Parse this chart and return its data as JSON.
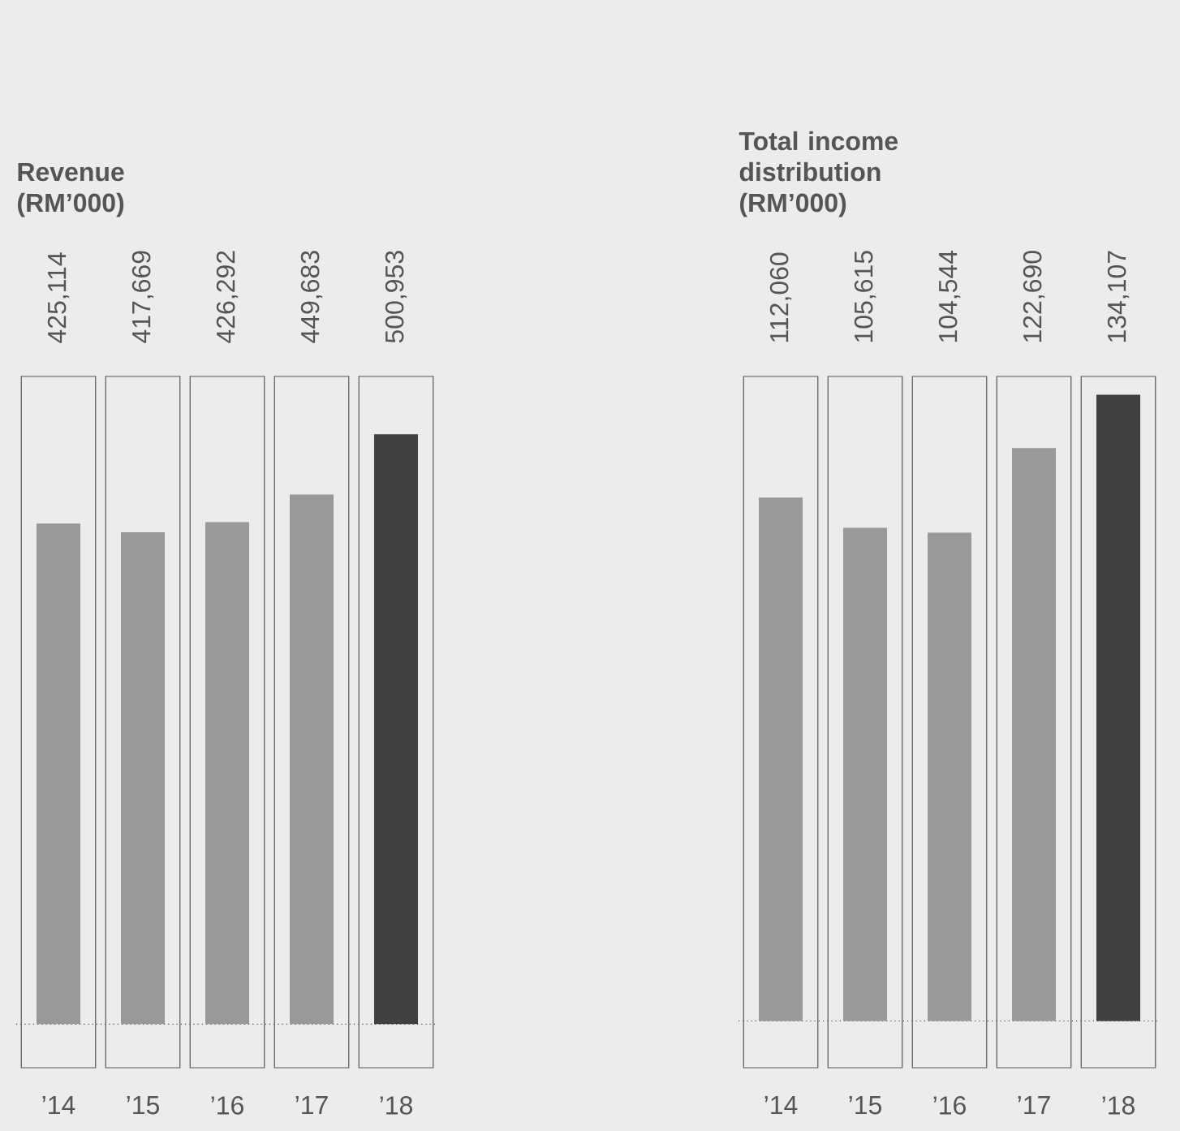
{
  "chart_data": [
    {
      "type": "bar",
      "title": "Revenue (RM’000)",
      "categories": [
        "’14",
        "’15",
        "’16",
        "’17",
        "’18"
      ],
      "values": [
        425114,
        417669,
        426292,
        449683,
        500953
      ],
      "value_labels": [
        "425,114",
        "417,669",
        "426,292",
        "449,683",
        "500,953"
      ],
      "colors": [
        "#999999",
        "#999999",
        "#999999",
        "#999999",
        "#404040"
      ],
      "ylim": [
        -37000,
        550000
      ],
      "tick_labels": "x",
      "ref_lines": [
        {
          "axis": "y",
          "value": 0,
          "line_style": "dotted"
        }
      ]
    },
    {
      "type": "bar",
      "title": "Total income distribution (RM’000)",
      "categories": [
        "’14",
        "’15",
        "’16",
        "’17",
        "’18"
      ],
      "values": [
        112060,
        105615,
        104544,
        122690,
        134107
      ],
      "value_labels": [
        "112,060",
        "105,615",
        "104,544",
        "122,690",
        "134,107"
      ],
      "colors": [
        "#999999",
        "#999999",
        "#999999",
        "#999999",
        "#404040"
      ],
      "ylim": [
        -10000,
        138000
      ],
      "tick_labels": "x",
      "ref_lines": [
        {
          "axis": "y",
          "value": 0,
          "line_style": "dotted"
        }
      ]
    }
  ]
}
